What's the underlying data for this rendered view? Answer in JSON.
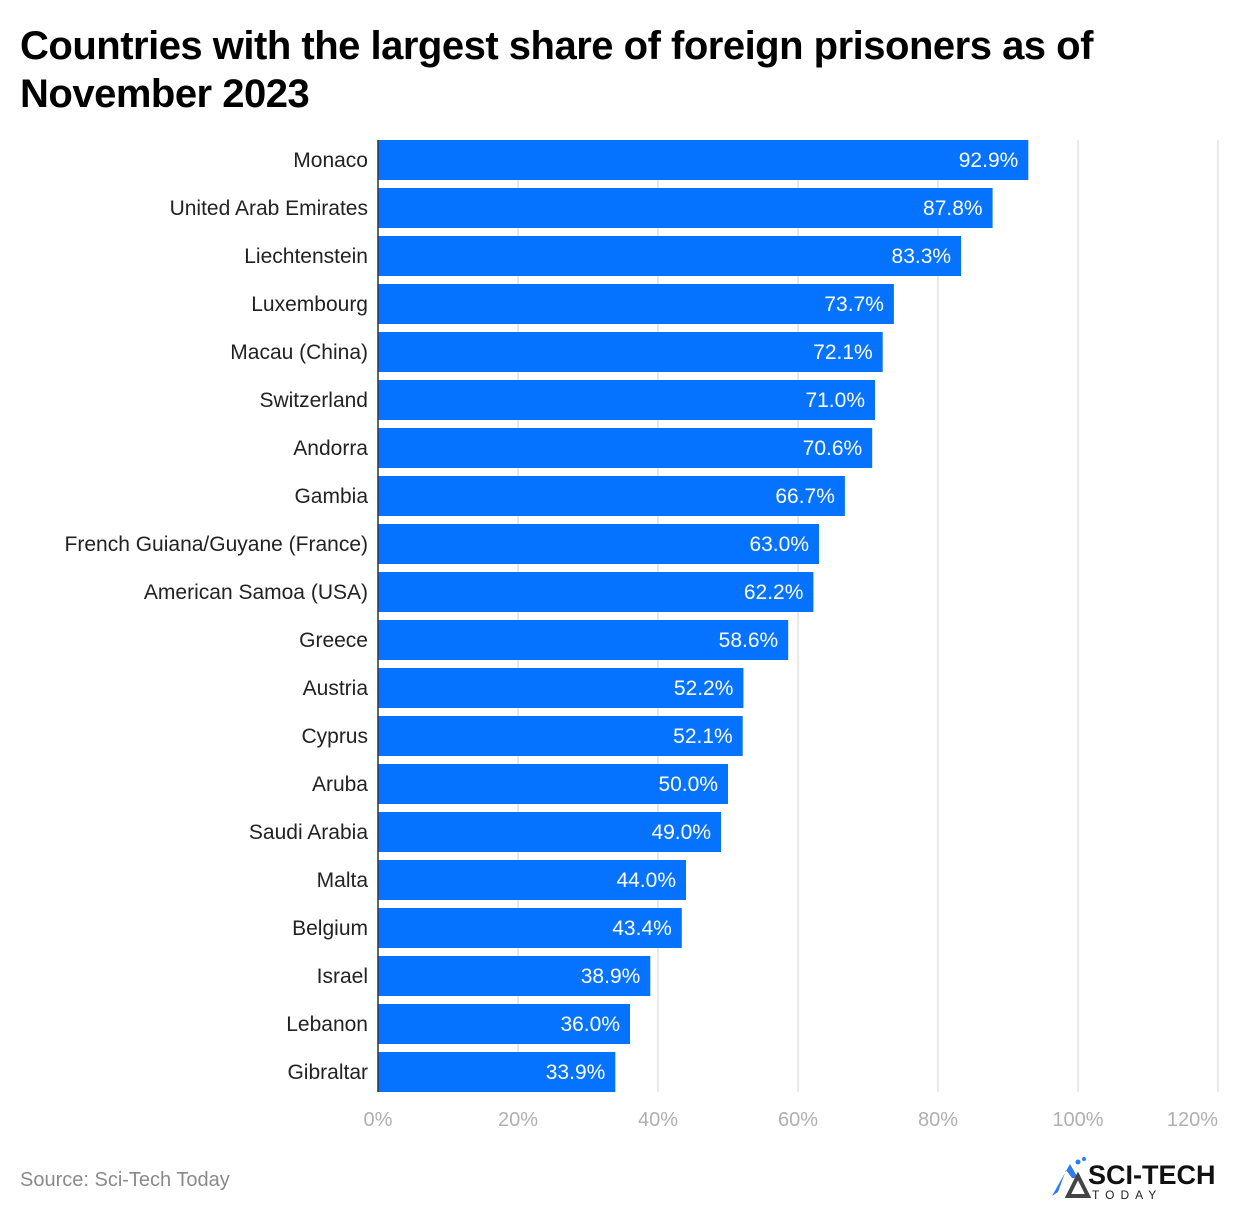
{
  "chart_data": {
    "type": "bar",
    "orientation": "horizontal",
    "title": "Countries with the largest share of foreign prisoners as of November 2023",
    "categories": [
      "Monaco",
      "United Arab Emirates",
      "Liechtenstein",
      "Luxembourg",
      "Macau (China)",
      "Switzerland",
      "Andorra",
      "Gambia",
      "French Guiana/Guyane (France)",
      "American Samoa (USA)",
      "Greece",
      "Austria",
      "Cyprus",
      "Aruba",
      "Saudi Arabia",
      "Malta",
      "Belgium",
      "Israel",
      "Lebanon",
      "Gibraltar"
    ],
    "values": [
      92.9,
      87.8,
      83.3,
      73.7,
      72.1,
      71.0,
      70.6,
      66.7,
      63.0,
      62.2,
      58.6,
      52.2,
      52.1,
      50.0,
      49.0,
      44.0,
      43.4,
      38.9,
      36.0,
      33.9
    ],
    "data_labels": [
      "92.9%",
      "87.8%",
      "83.3%",
      "73.7%",
      "72.1%",
      "71.0%",
      "70.6%",
      "66.7%",
      "63.0%",
      "62.2%",
      "58.6%",
      "52.2%",
      "52.1%",
      "50.0%",
      "49.0%",
      "44.0%",
      "43.4%",
      "38.9%",
      "36.0%",
      "33.9%"
    ],
    "xlim": [
      0,
      120
    ],
    "xticks": [
      "0%",
      "20%",
      "40%",
      "60%",
      "80%",
      "100%",
      "120%"
    ],
    "grid": true,
    "bar_color": "#0573FF",
    "xlabel": "",
    "ylabel": ""
  },
  "footer": {
    "source": "Source: Sci-Tech Today",
    "logo_text": "SCI-TECH TODAY"
  }
}
